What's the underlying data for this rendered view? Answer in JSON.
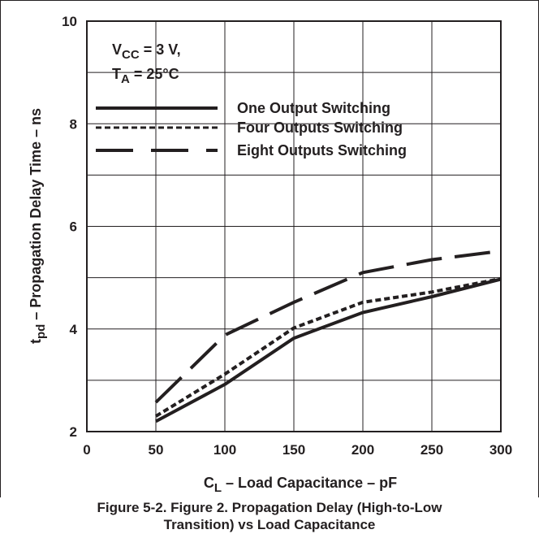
{
  "chart_data": {
    "type": "line",
    "title": "",
    "xlabel": {
      "main": "C",
      "sub": "L",
      "rest": " – Load Capacitance – pF"
    },
    "ylabel": {
      "main": "t",
      "sub": "pd",
      "rest": " – Propagation Delay Time – ns"
    },
    "xlim": [
      0,
      300
    ],
    "ylim": [
      2,
      10
    ],
    "xticks": [
      0,
      50,
      100,
      150,
      200,
      250,
      300
    ],
    "yticks": [
      2,
      4,
      6,
      8,
      10
    ],
    "grid": true,
    "legend_position": "top-left",
    "conditions": {
      "vcc": {
        "main": "V",
        "sub": "CC",
        "rest": " = 3 V,"
      },
      "ta": {
        "main": "T",
        "sub": "A",
        "rest": " = 25°C"
      }
    },
    "x": [
      50,
      100,
      150,
      200,
      250,
      300
    ],
    "series": [
      {
        "name": "One Output Switching",
        "style": "solid",
        "values": [
          2.2,
          2.92,
          3.82,
          4.32,
          4.63,
          4.97
        ]
      },
      {
        "name": "Four Outputs Switching",
        "style": "dotted",
        "values": [
          2.3,
          3.12,
          4.02,
          4.52,
          4.72,
          4.98
        ]
      },
      {
        "name": "Eight Outputs Switching",
        "style": "dashed",
        "values": [
          2.57,
          3.88,
          4.52,
          5.1,
          5.35,
          5.52
        ]
      }
    ]
  },
  "caption": {
    "line1": "Figure 5-2. Figure 2. Propagation Delay (High-to-Low",
    "line2": "Transition) vs Load Capacitance"
  },
  "colors": {
    "ink": "#231f20"
  }
}
